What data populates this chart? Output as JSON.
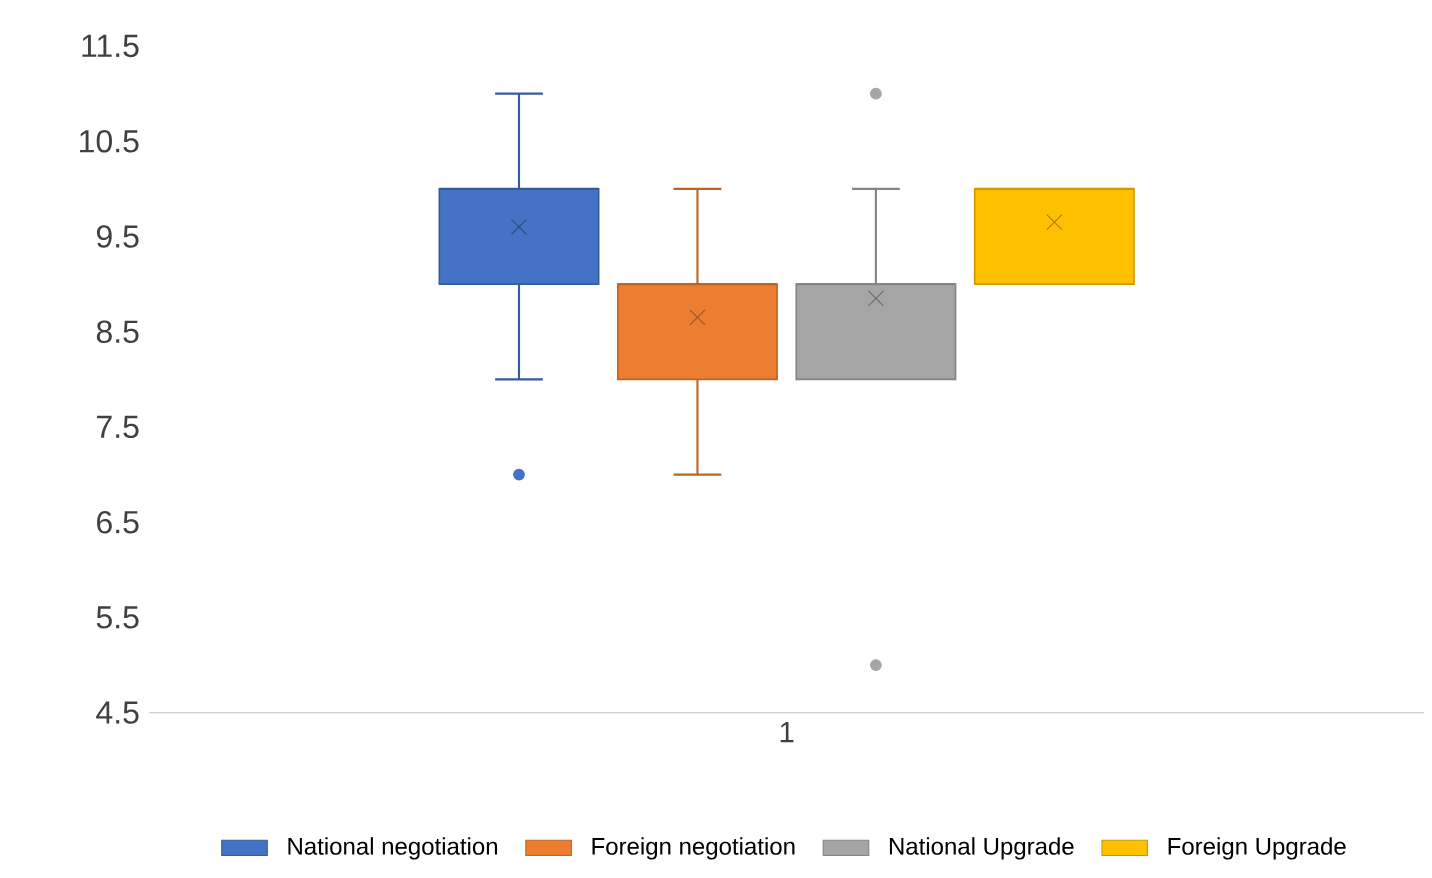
{
  "chart_data": {
    "type": "box",
    "categories": [
      "1"
    ],
    "ylim": [
      4.5,
      11.5
    ],
    "yticks": [
      4.5,
      5.5,
      6.5,
      7.5,
      8.5,
      9.5,
      10.5,
      11.5
    ],
    "legend": "bottom",
    "series": [
      {
        "name": "National negotiation",
        "color": "#4472c4",
        "boxes": [
          {
            "low": 8,
            "q1": 9,
            "median": 10,
            "q3": 10,
            "high": 11,
            "mean": 9.6,
            "outliers": [
              7
            ]
          }
        ]
      },
      {
        "name": "Foreign negotiation",
        "color": "#ed7d31",
        "boxes": [
          {
            "low": 7,
            "q1": 8,
            "median": 9,
            "q3": 9,
            "high": 10,
            "mean": 8.65
          }
        ]
      },
      {
        "name": "National Upgrade",
        "color": "#a5a5a5",
        "boxes": [
          {
            "low": 8,
            "q1": 8,
            "median": 9,
            "q3": 9,
            "high": 10,
            "mean": 8.85,
            "outliers": [
              11,
              5
            ]
          }
        ]
      },
      {
        "name": "Foreign Upgrade",
        "color": "#ffc000",
        "boxes": [
          {
            "low": 9,
            "q1": 9,
            "median": 10,
            "q3": 10,
            "high": 10,
            "mean": 9.65
          }
        ]
      }
    ]
  }
}
